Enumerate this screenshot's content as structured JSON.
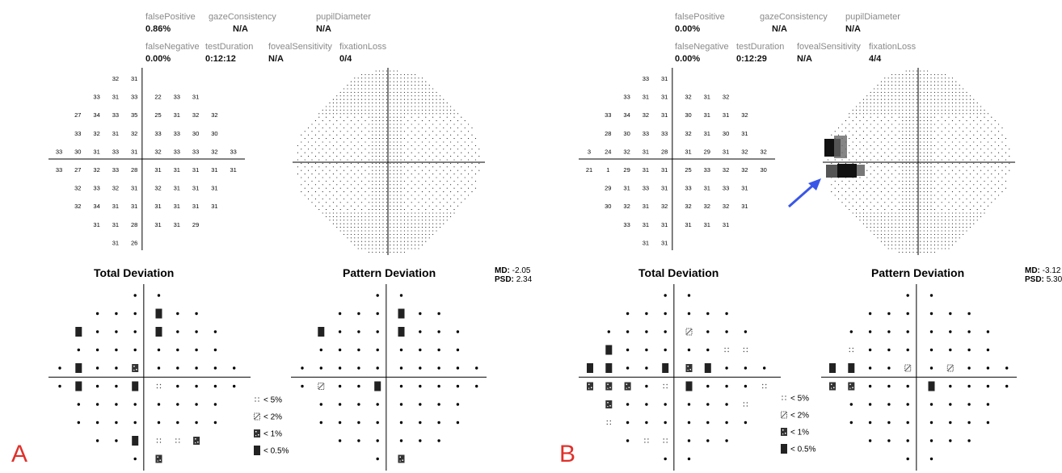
{
  "panels": [
    {
      "letter": "A",
      "metrics": {
        "falsePositive": {
          "label": "falsePositive",
          "value": "0.86%"
        },
        "gazeConsistency": {
          "label": "gazeConsistency",
          "value": "N/A"
        },
        "pupilDiameter": {
          "label": "pupilDiameter",
          "value": "N/A"
        },
        "falseNegative": {
          "label": "falseNegative",
          "value": "0.00%"
        },
        "testDuration": {
          "label": "testDuration",
          "value": "0:12:12"
        },
        "fovealSensitivity": {
          "label": "fovealSensitivity",
          "value": "N/A"
        },
        "fixationLoss": {
          "label": "fixationLoss",
          "value": "0/4"
        }
      },
      "threshold_rows": [
        [
          "",
          "",
          "",
          "32",
          "31",
          "",
          "",
          "",
          ""
        ],
        [
          "",
          "33",
          "31",
          "33",
          "22",
          "33",
          "31",
          "",
          ""
        ],
        [
          "27",
          "34",
          "33",
          "35",
          "25",
          "31",
          "32",
          "32",
          ""
        ],
        [
          "33",
          "32",
          "31",
          "32",
          "33",
          "33",
          "30",
          "30",
          ""
        ],
        [
          "33",
          "30",
          "31",
          "33",
          "31",
          "32",
          "33",
          "33",
          "32",
          "33"
        ],
        [
          "33",
          "27",
          "32",
          "33",
          "28",
          "31",
          "31",
          "31",
          "31",
          "31"
        ],
        [
          "32",
          "33",
          "32",
          "31",
          "32",
          "31",
          "31",
          "31",
          ""
        ],
        [
          "32",
          "34",
          "31",
          "31",
          "31",
          "31",
          "31",
          "31",
          ""
        ],
        [
          "",
          "31",
          "31",
          "28",
          "31",
          "31",
          "29",
          "",
          ""
        ],
        [
          "",
          "",
          "",
          "31",
          "26",
          "",
          "",
          "",
          ""
        ]
      ],
      "total_deviation_title": "Total Deviation",
      "pattern_deviation_title": "Pattern Deviation",
      "md": {
        "label": "MD:",
        "value": "-2.05"
      },
      "psd": {
        "label": "PSD:",
        "value": "2.34"
      },
      "total_deviation": [
        "...",
        "..",
        "....",
        "......",
        "........",
        "........",
        "......",
        "......",
        "....",
        ".."
      ],
      "td_symbols": [
        [
          ".",
          "."
        ],
        [
          ".",
          ".",
          ".",
          "H",
          ".",
          "."
        ],
        [
          "H",
          ".",
          ".",
          ".",
          "H",
          ".",
          ".",
          "."
        ],
        [
          ".",
          ".",
          ".",
          ".",
          ".",
          ".",
          ".",
          "."
        ],
        [
          ".",
          "H",
          ".",
          ".",
          "C",
          ".",
          ".",
          ".",
          ".",
          "."
        ],
        [
          ".",
          "H",
          ".",
          ".",
          "H",
          "A",
          ".",
          ".",
          ".",
          "."
        ],
        [
          ".",
          ".",
          ".",
          ".",
          ".",
          ".",
          ".",
          "."
        ],
        [
          ".",
          ".",
          ".",
          ".",
          ".",
          ".",
          ".",
          "."
        ],
        [
          ".",
          ".",
          "H",
          "A",
          "A",
          "C"
        ],
        [
          ".",
          "C"
        ]
      ],
      "pd_symbols": [
        [
          ".",
          "."
        ],
        [
          ".",
          ".",
          ".",
          "H",
          ".",
          "."
        ],
        [
          "H",
          ".",
          ".",
          ".",
          "H",
          ".",
          ".",
          "."
        ],
        [
          ".",
          ".",
          ".",
          ".",
          ".",
          ".",
          ".",
          "."
        ],
        [
          ".",
          ".",
          ".",
          ".",
          ".",
          ".",
          ".",
          ".",
          ".",
          "."
        ],
        [
          ".",
          "B",
          ".",
          ".",
          "H",
          ".",
          ".",
          ".",
          ".",
          "."
        ],
        [
          ".",
          ".",
          ".",
          ".",
          ".",
          ".",
          ".",
          "."
        ],
        [
          ".",
          ".",
          ".",
          ".",
          ".",
          ".",
          ".",
          "."
        ],
        [
          ".",
          ".",
          ".",
          ".",
          ".",
          "."
        ],
        [
          ".",
          "C"
        ]
      ]
    },
    {
      "letter": "B",
      "metrics": {
        "falsePositive": {
          "label": "falsePositive",
          "value": "0.00%"
        },
        "gazeConsistency": {
          "label": "gazeConsistency",
          "value": "N/A"
        },
        "pupilDiameter": {
          "label": "pupilDiameter",
          "value": "N/A"
        },
        "falseNegative": {
          "label": "falseNegative",
          "value": "0.00%"
        },
        "testDuration": {
          "label": "testDuration",
          "value": "0:12:29"
        },
        "fovealSensitivity": {
          "label": "fovealSensitivity",
          "value": "N/A"
        },
        "fixationLoss": {
          "label": "fixationLoss",
          "value": "4/4"
        }
      },
      "threshold_rows": [
        [
          "",
          "",
          "",
          "33",
          "31",
          "",
          "",
          "",
          ""
        ],
        [
          "",
          "33",
          "31",
          "31",
          "32",
          "31",
          "32",
          "",
          ""
        ],
        [
          "33",
          "34",
          "32",
          "31",
          "30",
          "31",
          "31",
          "32",
          ""
        ],
        [
          "28",
          "30",
          "33",
          "33",
          "32",
          "31",
          "30",
          "31",
          ""
        ],
        [
          "3",
          "24",
          "32",
          "31",
          "28",
          "31",
          "29",
          "31",
          "32",
          "32"
        ],
        [
          "21",
          "1",
          "29",
          "31",
          "31",
          "25",
          "33",
          "32",
          "32",
          "30"
        ],
        [
          "29",
          "31",
          "33",
          "31",
          "33",
          "31",
          "33",
          "31",
          ""
        ],
        [
          "30",
          "32",
          "31",
          "32",
          "32",
          "32",
          "32",
          "31",
          ""
        ],
        [
          "",
          "33",
          "31",
          "31",
          "31",
          "31",
          "31",
          "",
          ""
        ],
        [
          "",
          "",
          "",
          "31",
          "31",
          "",
          "",
          "",
          ""
        ]
      ],
      "total_deviation_title": "Total Deviation",
      "pattern_deviation_title": "Pattern Deviation",
      "md": {
        "label": "MD:",
        "value": "-3.12"
      },
      "psd": {
        "label": "PSD:",
        "value": "5.30"
      },
      "td_symbols": [
        [
          ".",
          "."
        ],
        [
          ".",
          ".",
          ".",
          ".",
          ".",
          "."
        ],
        [
          ".",
          ".",
          ".",
          ".",
          "B",
          ".",
          ".",
          "."
        ],
        [
          "H",
          ".",
          ".",
          ".",
          ".",
          ".",
          "A",
          "A"
        ],
        [
          "H",
          "H",
          ".",
          ".",
          "H",
          "C",
          "H",
          ".",
          ".",
          "."
        ],
        [
          "C",
          "C",
          "C",
          ".",
          "A",
          "H",
          ".",
          ".",
          ".",
          "A"
        ],
        [
          "C",
          ".",
          ".",
          ".",
          ".",
          ".",
          ".",
          "A"
        ],
        [
          "A",
          ".",
          ".",
          ".",
          ".",
          ".",
          ".",
          "."
        ],
        [
          ".",
          "A",
          "A",
          ".",
          ".",
          "."
        ],
        [
          ".",
          "."
        ]
      ],
      "pd_symbols": [
        [
          ".",
          "."
        ],
        [
          ".",
          ".",
          ".",
          ".",
          ".",
          "."
        ],
        [
          ".",
          ".",
          ".",
          ".",
          ".",
          ".",
          ".",
          "."
        ],
        [
          "A",
          ".",
          ".",
          ".",
          ".",
          ".",
          ".",
          "."
        ],
        [
          "H",
          "H",
          ".",
          ".",
          "B",
          ".",
          "B",
          ".",
          ".",
          "."
        ],
        [
          "C",
          "C",
          ".",
          ".",
          ".",
          "H",
          ".",
          ".",
          ".",
          "."
        ],
        [
          ".",
          ".",
          ".",
          ".",
          ".",
          ".",
          ".",
          "."
        ],
        [
          ".",
          ".",
          ".",
          ".",
          ".",
          ".",
          ".",
          "."
        ],
        [
          ".",
          ".",
          ".",
          ".",
          ".",
          "."
        ],
        [
          ".",
          "."
        ]
      ]
    }
  ],
  "legend": [
    {
      "symbol": "A",
      "label": "< 5%"
    },
    {
      "symbol": "B",
      "label": "< 2%"
    },
    {
      "symbol": "C",
      "label": "< 1%"
    },
    {
      "symbol": "H",
      "label": "< 0.5%"
    }
  ],
  "colors": {
    "arrow": "#3a56e8",
    "letter": "#e0302a",
    "label_gray": "#8a8a8a"
  }
}
